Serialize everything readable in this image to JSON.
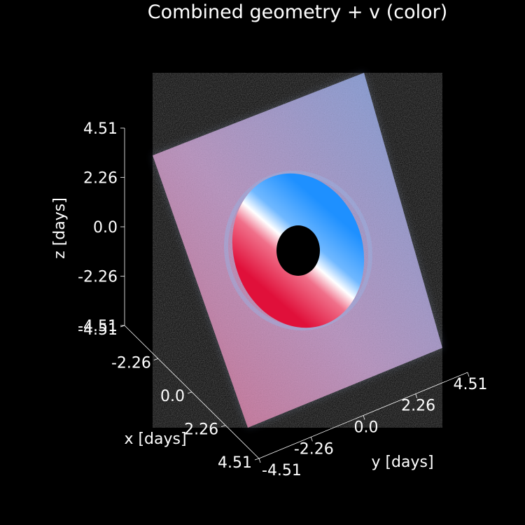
{
  "chart_data": {
    "type": "scatter",
    "title": "Combined geometry + v (color)",
    "projection": "3d",
    "axes": {
      "x": {
        "label": "x [days]",
        "ticks": [
          -4.51,
          -2.26,
          0.0,
          2.26,
          4.51
        ],
        "tick_labels": [
          "-4.51",
          "-2.26",
          "0.0",
          "2.26",
          "4.51"
        ],
        "range": [
          -4.51,
          4.51
        ]
      },
      "y": {
        "label": "y [days]",
        "ticks": [
          -4.51,
          -2.26,
          0.0,
          2.26,
          4.51
        ],
        "tick_labels": [
          "-4.51",
          "-2.26",
          "0.0",
          "2.26",
          "4.51"
        ],
        "range": [
          -4.51,
          4.51
        ]
      },
      "z": {
        "label": "z [days]",
        "ticks": [
          -4.51,
          -2.26,
          0.0,
          2.26,
          4.51
        ],
        "tick_labels": [
          "-4.51",
          "-2.26",
          "0.0",
          "2.26",
          "4.51"
        ],
        "range": [
          -4.51,
          4.51
        ]
      }
    },
    "color_encoding": "velocity v",
    "colormap": {
      "negative": "#e0103a",
      "zero": "#ffffff",
      "positive": "#1e90ff"
    },
    "background": "#000000",
    "grid": false,
    "legend": "none",
    "components": [
      {
        "name": "scattered screen",
        "shape": "square",
        "extent": [
          -4.51,
          4.51
        ]
      },
      {
        "name": "disk",
        "shape": "annulus",
        "outer_radius_days": 2.26,
        "inner_radius_days": 0.55
      }
    ]
  }
}
